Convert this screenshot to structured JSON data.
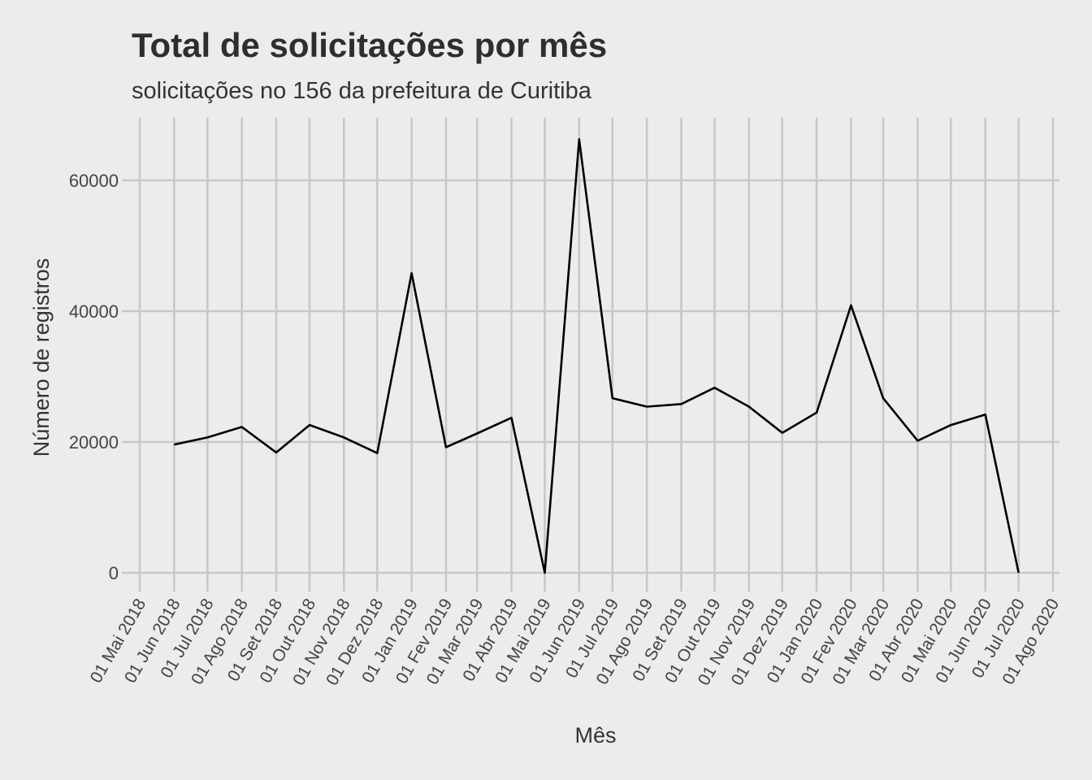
{
  "chart_data": {
    "type": "line",
    "title": "Total de solicitações por mês",
    "subtitle": "solicitações no 156 da prefeitura de Curitiba",
    "xlabel": "Mês",
    "ylabel": "Número de registros",
    "ylim": [
      0,
      66000
    ],
    "yticks": [
      0,
      20000,
      40000,
      60000
    ],
    "ytick_labels": [
      "0",
      "20000",
      "40000",
      "60000"
    ],
    "x_tick_dates": [
      "2018-05-01",
      "2018-06-01",
      "2018-07-01",
      "2018-08-01",
      "2018-09-01",
      "2018-10-01",
      "2018-11-01",
      "2018-12-01",
      "2019-01-01",
      "2019-02-01",
      "2019-03-01",
      "2019-04-01",
      "2019-05-01",
      "2019-06-01",
      "2019-07-01",
      "2019-08-01",
      "2019-09-01",
      "2019-10-01",
      "2019-11-01",
      "2019-12-01",
      "2020-01-01",
      "2020-02-01",
      "2020-03-01",
      "2020-04-01",
      "2020-05-01",
      "2020-06-01",
      "2020-07-01",
      "2020-08-01"
    ],
    "x_tick_labels": [
      "01 Mai 2018",
      "01 Jun 2018",
      "01 Jul 2018",
      "01 Ago 2018",
      "01 Set 2018",
      "01 Out 2018",
      "01 Nov 2018",
      "01 Dez 2018",
      "01 Jan 2019",
      "01 Fev 2019",
      "01 Mar 2019",
      "01 Abr 2019",
      "01 Mai 2019",
      "01 Jun 2019",
      "01 Jul 2019",
      "01 Ago 2019",
      "01 Set 2019",
      "01 Out 2019",
      "01 Nov 2019",
      "01 Dez 2019",
      "01 Jan 2020",
      "01 Fev 2020",
      "01 Mar 2020",
      "01 Abr 2020",
      "01 Mai 2020",
      "01 Jun 2020",
      "01 Jul 2020",
      "01 Ago 2020"
    ],
    "x": [
      "2018-06-01",
      "2018-07-01",
      "2018-08-01",
      "2018-09-01",
      "2018-10-01",
      "2018-11-01",
      "2018-12-01",
      "2019-01-01",
      "2019-02-01",
      "2019-03-01",
      "2019-04-01",
      "2019-05-01",
      "2019-06-01",
      "2019-07-01",
      "2019-08-01",
      "2019-09-01",
      "2019-10-01",
      "2019-11-01",
      "2019-12-01",
      "2020-01-01",
      "2020-02-01",
      "2020-03-01",
      "2020-04-01",
      "2020-05-01",
      "2020-06-01",
      "2020-07-01"
    ],
    "series": [
      {
        "values": [
          19600,
          20700,
          22300,
          18400,
          22600,
          20700,
          18300,
          45800,
          19200,
          21300,
          23700,
          0,
          66300,
          26700,
          25400,
          25800,
          28300,
          25400,
          21400,
          24500,
          40900,
          26700,
          20200,
          22600,
          24200,
          0
        ],
        "color": "#000000"
      }
    ],
    "grid": true,
    "background": "#ececec",
    "grid_color": "#c8c8c8"
  }
}
